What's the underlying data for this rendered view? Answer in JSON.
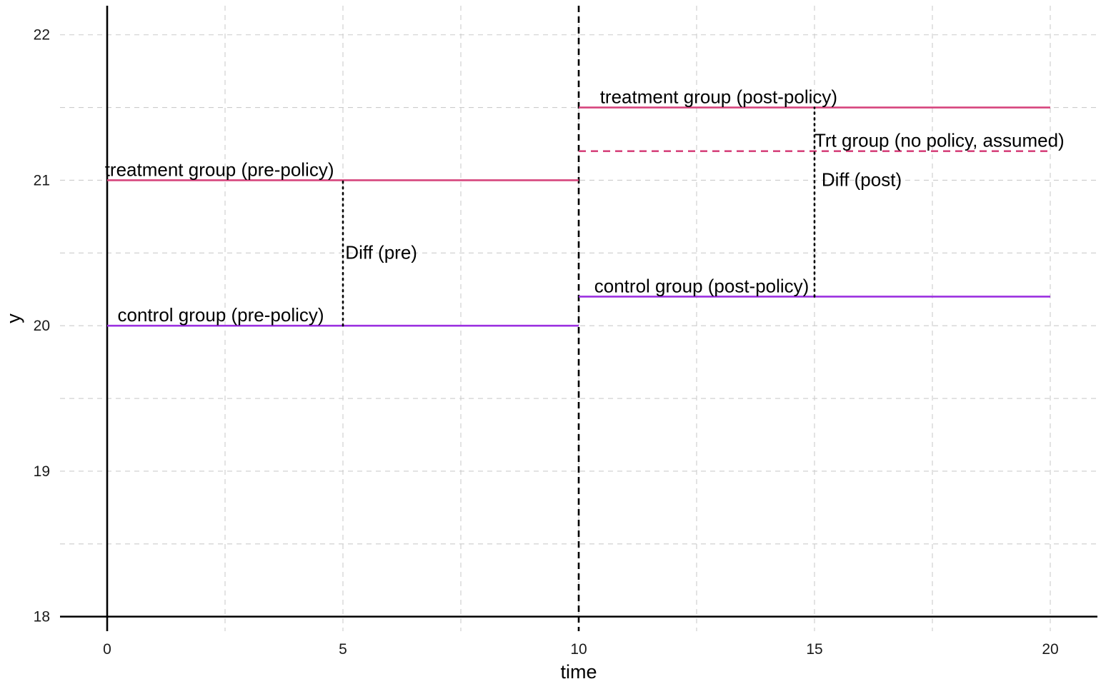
{
  "chart_data": {
    "type": "line",
    "title": "",
    "xlabel": "time",
    "ylabel": "y",
    "xlim": [
      -1,
      21
    ],
    "ylim": [
      17.9,
      22.2
    ],
    "x_ticks": [
      0,
      5,
      10,
      15,
      20
    ],
    "y_ticks": [
      18,
      19,
      20,
      21,
      22
    ],
    "x_tick_labels": [
      "0",
      "5",
      "10",
      "15",
      "20"
    ],
    "y_tick_labels": [
      "18",
      "19",
      "20",
      "21",
      "22"
    ],
    "grid": true,
    "legend": "none",
    "policy_time": 10,
    "colors": {
      "treatment": "#d6457d",
      "control": "#9b30e0",
      "axis": "#000000",
      "grid": "#cccccc"
    },
    "segments": [
      {
        "id": "treatment-pre",
        "x": [
          0,
          10
        ],
        "y": [
          21,
          21
        ],
        "color": "#d6457d",
        "style": "solid"
      },
      {
        "id": "treatment-post",
        "x": [
          10,
          20
        ],
        "y": [
          21.5,
          21.5
        ],
        "color": "#d6457d",
        "style": "solid"
      },
      {
        "id": "treatment-counterfactual",
        "x": [
          10,
          20
        ],
        "y": [
          21.2,
          21.2
        ],
        "color": "#d6457d",
        "style": "dashed"
      },
      {
        "id": "control-pre",
        "x": [
          0,
          10
        ],
        "y": [
          20,
          20
        ],
        "color": "#9b30e0",
        "style": "solid"
      },
      {
        "id": "control-post",
        "x": [
          10,
          20
        ],
        "y": [
          20.2,
          20.2
        ],
        "color": "#9b30e0",
        "style": "solid"
      }
    ],
    "differences": [
      {
        "id": "diff-pre",
        "x": 5,
        "y": [
          20,
          21
        ]
      },
      {
        "id": "diff-post",
        "x": 15,
        "y": [
          20.2,
          21.5
        ]
      }
    ],
    "annotations": [
      {
        "id": "label-treatment-pre",
        "text": "treatment group (pre-policy)",
        "x": -0.05,
        "y": 21.01
      },
      {
        "id": "label-control-pre",
        "text": "control group (pre-policy)",
        "x": 0.22,
        "y": 20.01
      },
      {
        "id": "label-treatment-post",
        "text": "treatment group (post-policy)",
        "x": 10.45,
        "y": 21.51
      },
      {
        "id": "label-counterfactual",
        "text": "Trt group (no policy, assumed)",
        "x": 15.0,
        "y": 21.21
      },
      {
        "id": "label-control-post",
        "text": "control group (post-policy)",
        "x": 10.33,
        "y": 20.21
      },
      {
        "id": "label-diff-pre",
        "text": "Diff (pre)",
        "x": 5.05,
        "y": 20.44
      },
      {
        "id": "label-diff-post",
        "text": "Diff (post)",
        "x": 15.15,
        "y": 20.94
      }
    ]
  }
}
